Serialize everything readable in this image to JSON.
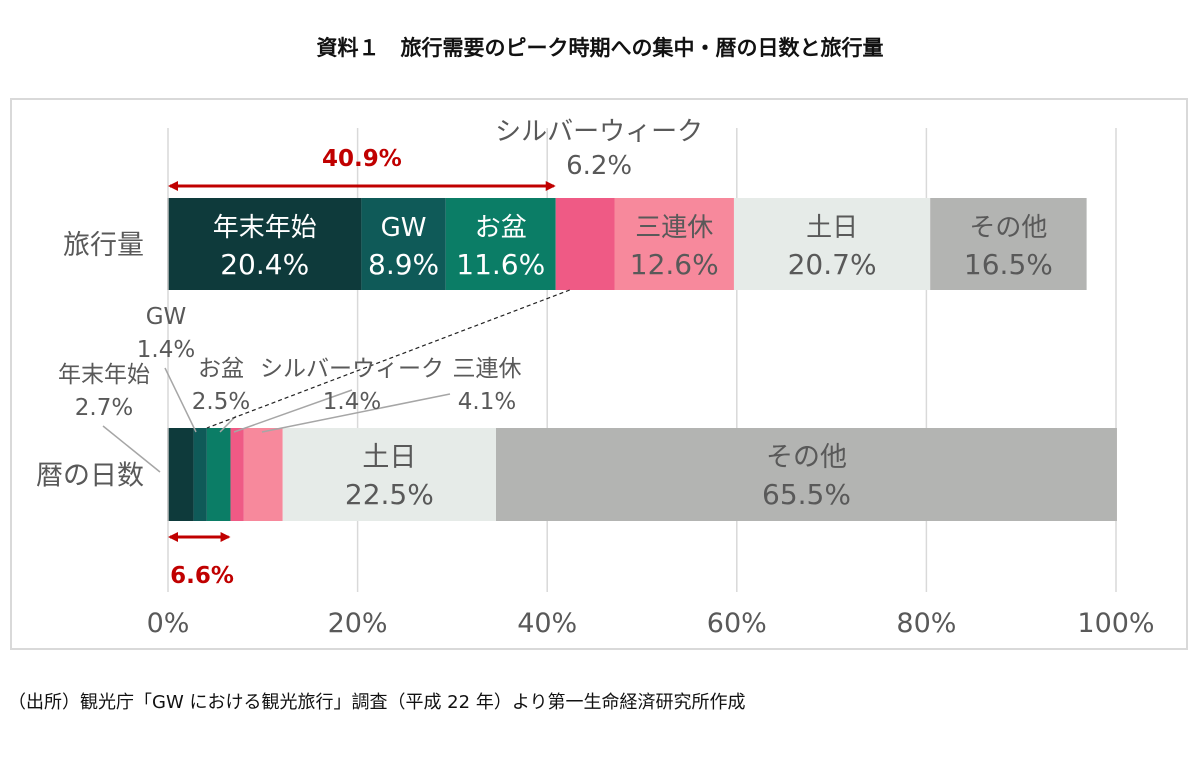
{
  "page": {
    "title": "資料１　旅行需要のピーク時期への集中・暦の日数と旅行量",
    "source": "（出所）観光庁「GW における観光旅行」調査（平成 22 年）より第一生命経済研究所作成"
  },
  "colors": {
    "年末年始": "#0e3a3b",
    "GW": "#0f5a58",
    "お盆": "#0b7d66",
    "シルバーウィーク": "#ef5a85",
    "三連休": "#f7899c",
    "土日": "#e6ebe8",
    "その他": "#b3b4b2",
    "accent": "#c00000",
    "axis_text": "#595959",
    "grid": "#d9d9d9"
  },
  "chart_data": {
    "type": "bar",
    "orientation": "horizontal",
    "stacked": "100%",
    "categories": [
      "旅行量",
      "暦の日数"
    ],
    "series": [
      {
        "name": "年末年始",
        "values": [
          20.4,
          2.7
        ]
      },
      {
        "name": "GW",
        "values": [
          8.9,
          1.4
        ]
      },
      {
        "name": "お盆",
        "values": [
          11.6,
          2.5
        ]
      },
      {
        "name": "シルバーウィーク",
        "values": [
          6.2,
          1.4
        ]
      },
      {
        "name": "三連休",
        "values": [
          12.6,
          4.1
        ]
      },
      {
        "name": "土日",
        "values": [
          20.7,
          22.5
        ]
      },
      {
        "name": "その他",
        "values": [
          16.5,
          65.5
        ]
      }
    ],
    "value_labels": [
      [
        "20.4%",
        "8.9%",
        "11.6%",
        "6.2%",
        "12.6%",
        "20.7%",
        "16.5%"
      ],
      [
        "2.7%",
        "1.4%",
        "2.5%",
        "1.4%",
        "4.1%",
        "22.5%",
        "65.5%"
      ]
    ],
    "xticks": [
      "0%",
      "20%",
      "40%",
      "60%",
      "80%",
      "100%"
    ],
    "xlim": [
      0,
      100
    ],
    "grid": true,
    "annotations": [
      {
        "category": "旅行量",
        "text": "40.9%",
        "from": 0,
        "to": 40.9
      },
      {
        "category": "暦の日数",
        "text": "6.6%",
        "from": 0,
        "to": 6.6
      }
    ]
  }
}
